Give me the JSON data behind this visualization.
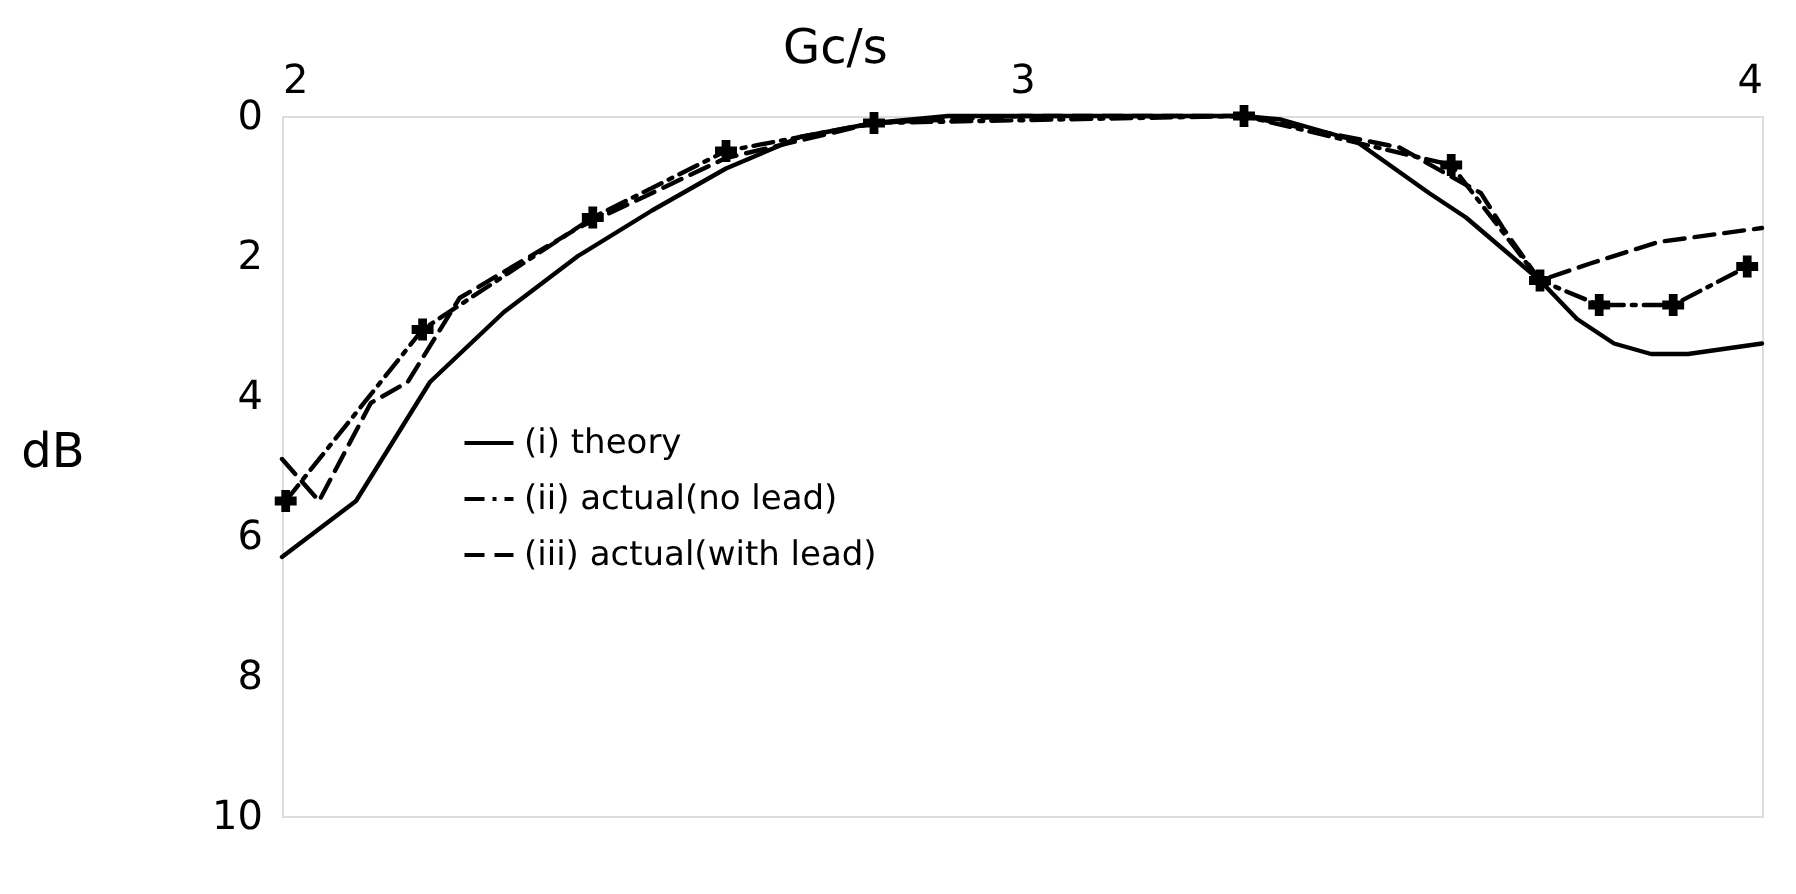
{
  "chart_data": {
    "type": "line",
    "xlabel": "Gc/s",
    "ylabel": "dB",
    "xlim": [
      2,
      4
    ],
    "xticks": [
      2,
      3,
      4
    ],
    "ylim": [
      10,
      0
    ],
    "yticks": [
      0,
      2,
      4,
      6,
      8,
      10
    ],
    "grid": false,
    "legend": "left",
    "series": [
      {
        "name": "(i) theory",
        "color": "#000000",
        "line_style": "solid",
        "marker": "none",
        "x": [
          2.0,
          2.05,
          2.1,
          2.2,
          2.3,
          2.4,
          2.5,
          2.6,
          2.7,
          2.8,
          2.9,
          3.0,
          3.1,
          3.2,
          3.3,
          3.35,
          3.45,
          3.55,
          3.6,
          3.65,
          3.7,
          3.75,
          3.8,
          3.85,
          3.9,
          4.0
        ],
        "values": [
          6.3,
          5.9,
          5.5,
          3.8,
          2.8,
          2.0,
          1.35,
          0.75,
          0.3,
          0.1,
          0.0,
          0.0,
          0.0,
          0.0,
          0.0,
          0.05,
          0.35,
          1.1,
          1.45,
          1.9,
          2.35,
          2.9,
          3.25,
          3.4,
          3.4,
          3.25
        ]
      },
      {
        "name": "(ii) actual(no lead)",
        "color": "#000000",
        "line_style": "dashdot",
        "marker": "cross",
        "x": [
          2.005,
          2.19,
          2.42,
          2.6,
          2.8,
          3.3,
          3.58,
          3.7,
          3.78,
          3.88,
          3.98
        ],
        "values": [
          5.5,
          3.05,
          1.45,
          0.5,
          0.1,
          0.0,
          0.7,
          2.35,
          2.7,
          2.7,
          2.15
        ]
      },
      {
        "name": "(iii) actual(with lead)",
        "color": "#000000",
        "line_style": "dashed",
        "marker": "none",
        "x": [
          2.0,
          2.05,
          2.12,
          2.17,
          2.24,
          2.4,
          2.6,
          2.8,
          3.0,
          3.3,
          3.51,
          3.62,
          3.65,
          3.7,
          3.77,
          3.86,
          4.0
        ],
        "values": [
          4.9,
          5.5,
          4.1,
          3.8,
          2.6,
          1.6,
          0.6,
          0.1,
          0.0,
          0.0,
          0.45,
          1.1,
          1.6,
          2.35,
          2.1,
          1.8,
          1.6
        ]
      }
    ]
  }
}
